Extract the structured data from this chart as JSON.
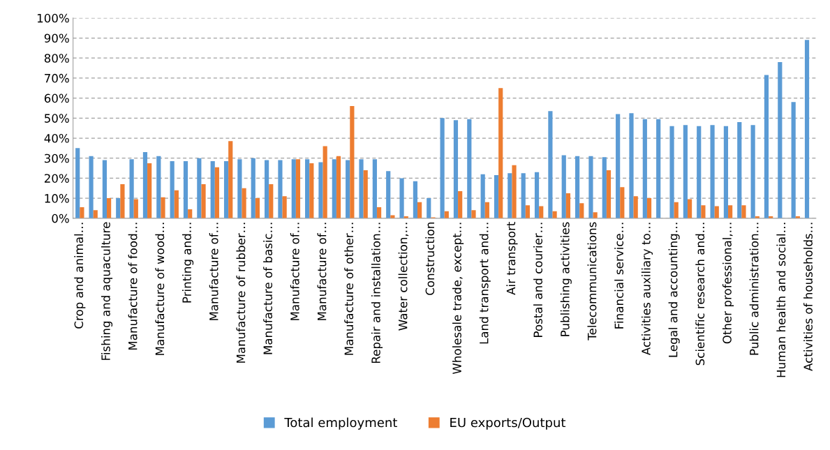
{
  "chart_data": {
    "type": "bar",
    "categories": [
      "Crop and animal…",
      null,
      "Fishing and aquaculture",
      null,
      "Manufacture of food…",
      null,
      "Manufacture of wood…",
      null,
      "Printing and…",
      null,
      "Manufacture of…",
      null,
      "Manufacture of rubber…",
      null,
      "Manufacture of basic…",
      null,
      "Manufacture of…",
      null,
      "Manufacture of…",
      null,
      "Manufacture of other…",
      null,
      "Repair and installation…",
      null,
      "Water collection,…",
      null,
      "Construction",
      null,
      "Wholesale trade, except…",
      null,
      "Land transport and…",
      null,
      "Air transport",
      null,
      "Postal and courier…",
      null,
      "Publishing activities",
      null,
      "Telecommunications",
      null,
      "Financial service…",
      null,
      "Activities auxiliary to…",
      null,
      "Legal and accounting…",
      null,
      "Scientific research and…",
      null,
      "Other professional,…",
      null,
      "Public administration…",
      null,
      "Human health and social…",
      null,
      "Activities of households…"
    ],
    "series": [
      {
        "name": "Total employment",
        "color": "#5b9bd5",
        "values": [
          35,
          31,
          29,
          10,
          29.5,
          33,
          31,
          28.5,
          28.5,
          30,
          28.5,
          28.5,
          29.5,
          30,
          29,
          29,
          29.5,
          29.5,
          28,
          29.5,
          29,
          29.5,
          29.5,
          23.5,
          20,
          18.5,
          10,
          50,
          49,
          49.5,
          22,
          21.5,
          22.5,
          22.5,
          23,
          53.5,
          31.5,
          31,
          31,
          30.5,
          52,
          52.5,
          49.5,
          49.5,
          46,
          46.5,
          46,
          46.5,
          46,
          48,
          46.5,
          71.5,
          78,
          58,
          89
        ]
      },
      {
        "name": "EU exports/Output",
        "color": "#ed7d31",
        "values": [
          5.5,
          4,
          10,
          17,
          9.5,
          27.5,
          10.5,
          14,
          4.5,
          17,
          25.5,
          38.5,
          15,
          10,
          17,
          11,
          29.5,
          27.5,
          36,
          31,
          56,
          24,
          5.5,
          1.5,
          1,
          8,
          0.5,
          3.5,
          13.5,
          4,
          8,
          65,
          26.5,
          6.5,
          6,
          3.5,
          12.5,
          7.5,
          3,
          24,
          15.5,
          11,
          10,
          0,
          8,
          9.5,
          6.5,
          6,
          6.5,
          6.5,
          1,
          1,
          0,
          1,
          0
        ]
      }
    ],
    "ylim": [
      0,
      100
    ],
    "yticks": [
      {
        "value": 0,
        "label": "0%"
      },
      {
        "value": 10,
        "label": "10%"
      },
      {
        "value": 20,
        "label": "20%"
      },
      {
        "value": 30,
        "label": "30%"
      },
      {
        "value": 40,
        "label": "40%"
      },
      {
        "value": 50,
        "label": "50%"
      },
      {
        "value": 60,
        "label": "60%"
      },
      {
        "value": 70,
        "label": "70%"
      },
      {
        "value": 80,
        "label": "80%"
      },
      {
        "value": 90,
        "label": "90%"
      },
      {
        "value": 100,
        "label": "100%"
      }
    ],
    "grid": "y",
    "legend": "bottom"
  }
}
